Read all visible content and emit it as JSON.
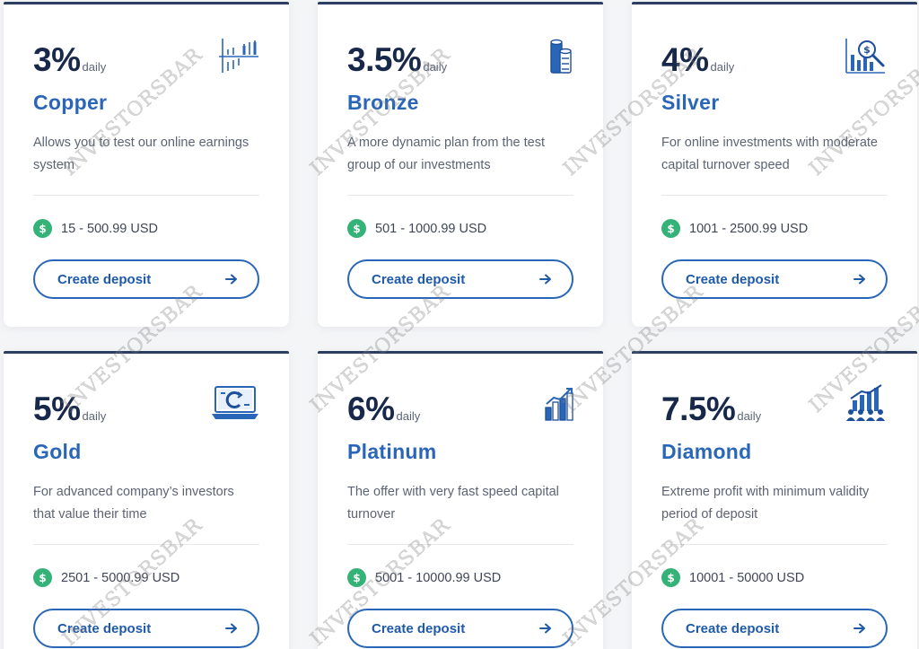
{
  "watermark_text": "INVESTORSBAR",
  "colors": {
    "accent": "#2a66b8",
    "heading": "#17284a",
    "money_badge": "#35b277",
    "card_top_border": "#2d3e63"
  },
  "plans": [
    {
      "rate": "3%",
      "period": "daily",
      "name": "Copper",
      "description": "Allows you to test our online earnings system",
      "range": "15 - 500.99 USD",
      "button": "Create deposit",
      "icon": "bar-chart-axis-icon"
    },
    {
      "rate": "3.5%",
      "period": "daily",
      "name": "Bronze",
      "description": "A more dynamic plan from the test group of our investments",
      "range": "501 - 1000.99 USD",
      "button": "Create deposit",
      "icon": "coin-stack-icon"
    },
    {
      "rate": "4%",
      "period": "daily",
      "name": "Silver",
      "description": "For online investments with moderate capital turnover speed",
      "range": "1001 - 2500.99 USD",
      "button": "Create deposit",
      "icon": "chart-magnifier-dollar-icon"
    },
    {
      "rate": "5%",
      "period": "daily",
      "name": "Gold",
      "description": "For advanced company’s investors that value their time",
      "range": "2501 - 5000.99 USD",
      "button": "Create deposit",
      "icon": "laptop-refresh-icon"
    },
    {
      "rate": "6%",
      "period": "daily",
      "name": "Platinum",
      "description": "The offer with very fast speed capital turnover",
      "range": "5001 - 10000.99 USD",
      "button": "Create deposit",
      "icon": "growth-bars-icon"
    },
    {
      "rate": "7.5%",
      "period": "daily",
      "name": "Diamond",
      "description": "Extreme profit with minimum validity period of deposit",
      "range": "10001 - 50000 USD",
      "button": "Create deposit",
      "icon": "team-growth-icon"
    }
  ]
}
